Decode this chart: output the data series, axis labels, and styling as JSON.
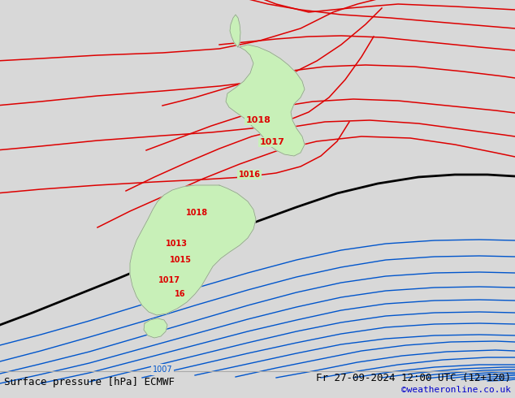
{
  "title_left": "Surface pressure [hPa] ECMWF",
  "title_right": "Fr 27-09-2024 12:00 UTC (12+120)",
  "credit": "©weatheronline.co.uk",
  "bg_color": "#d8d8d8",
  "land_color": "#c8f0b8",
  "land_border": "#909090",
  "red_color": "#dd0000",
  "black_color": "#000000",
  "blue_color": "#0055cc",
  "credit_color": "#0000cc",
  "footer_text_color": "#000000",
  "figsize": [
    6.34,
    4.9
  ],
  "dpi": 100
}
